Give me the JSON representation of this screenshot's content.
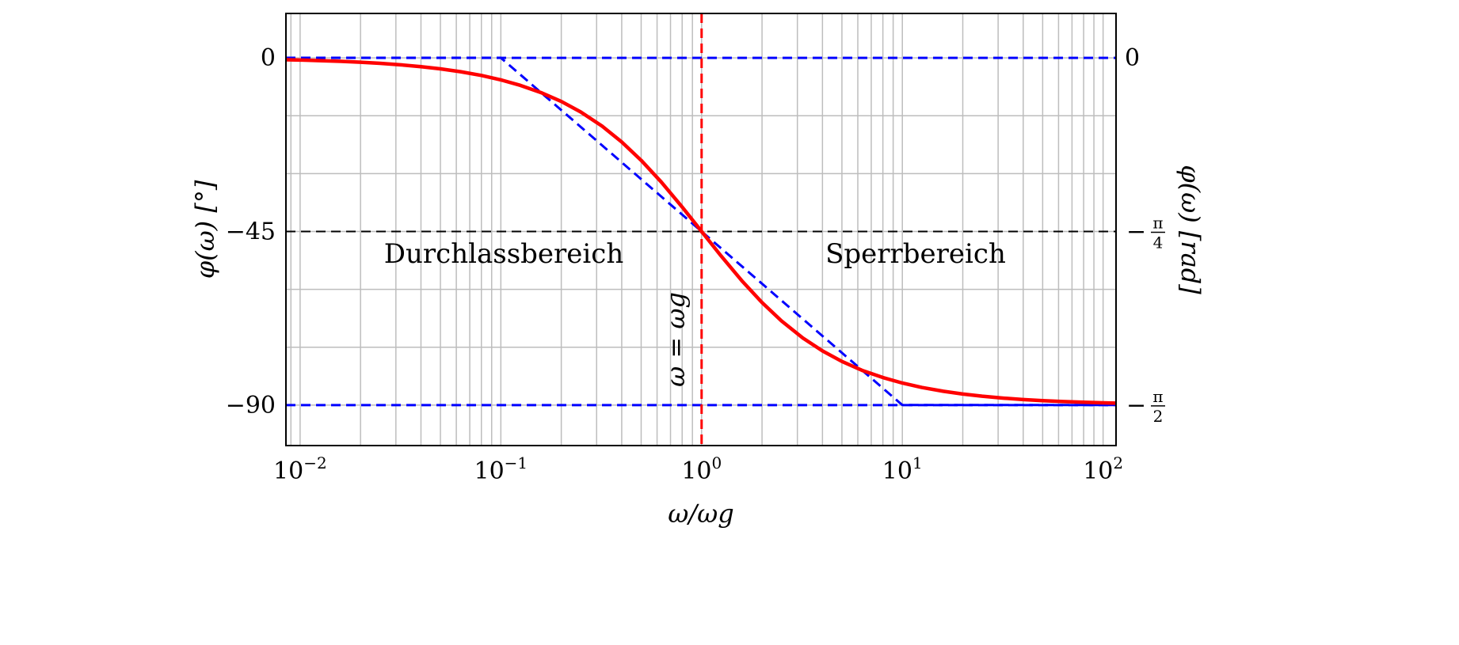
{
  "chart_data": {
    "type": "line",
    "x_scale": "log",
    "xlim": [
      0.0085,
      116
    ],
    "ylim": [
      -100.5,
      11.5
    ],
    "grid": true,
    "xlabel": "ω/ωg",
    "ylabel": "φ(ω) [°]",
    "ylabel_right": "φ(ω) [rad]",
    "x_ticks": [
      {
        "base": "10",
        "exp": "−2",
        "value": 0.01
      },
      {
        "base": "10",
        "exp": "−1",
        "value": 0.1
      },
      {
        "base": "10",
        "exp": "0",
        "value": 1
      },
      {
        "base": "10",
        "exp": "1",
        "value": 10
      },
      {
        "base": "10",
        "exp": "2",
        "value": 100
      }
    ],
    "y_ticks_left": [
      {
        "label": "0",
        "value": 0
      },
      {
        "label": "−45",
        "value": -45
      },
      {
        "label": "−90",
        "value": -90
      }
    ],
    "y_ticks_right": [
      {
        "label": "0",
        "value": 0
      },
      {
        "prefix": "−",
        "num": "π",
        "den": "4",
        "value": -45
      },
      {
        "prefix": "−",
        "num": "π",
        "den": "2",
        "value": -90
      }
    ],
    "series": [
      {
        "color": "#ff0000",
        "style": "solid",
        "x": [
          0.0085,
          0.01,
          0.0125,
          0.016,
          0.02,
          0.025,
          0.032,
          0.04,
          0.05,
          0.063,
          0.08,
          0.1,
          0.125,
          0.16,
          0.2,
          0.25,
          0.32,
          0.4,
          0.5,
          0.63,
          0.8,
          1,
          1.25,
          1.6,
          2,
          2.5,
          3.2,
          4,
          5,
          6.3,
          8,
          10,
          12.5,
          16,
          20,
          25,
          32,
          40,
          50,
          63,
          80,
          100,
          116
        ],
        "y": [
          -0.49,
          -0.57,
          -0.72,
          -0.92,
          -1.15,
          -1.43,
          -1.83,
          -2.29,
          -2.86,
          -3.6,
          -4.57,
          -5.71,
          -7.13,
          -9.09,
          -11.31,
          -14.04,
          -17.74,
          -21.8,
          -26.57,
          -32.2,
          -38.66,
          -45,
          -51.34,
          -57.99,
          -63.43,
          -68.2,
          -72.65,
          -75.96,
          -78.69,
          -81.0,
          -82.87,
          -84.29,
          -85.43,
          -86.42,
          -87.14,
          -87.71,
          -88.21,
          -88.57,
          -88.85,
          -89.09,
          -89.28,
          -89.43,
          -89.51
        ]
      },
      {
        "color": "#0000ff",
        "style": "dashed",
        "x": [
          0.0085,
          0.1,
          10,
          116
        ],
        "y": [
          0,
          0,
          -90,
          -90
        ]
      }
    ],
    "reference_lines": [
      {
        "orientation": "horizontal",
        "value": 0,
        "color": "#0000ff"
      },
      {
        "orientation": "horizontal",
        "value": -90,
        "color": "#0000ff"
      },
      {
        "orientation": "horizontal",
        "value": -45,
        "color": "#000000"
      },
      {
        "orientation": "vertical",
        "value": 1,
        "color": "#ff0000",
        "label": "ω = ωg"
      }
    ],
    "annotations": [
      {
        "text": "Durchlassbereich",
        "x": 0.1,
        "y": -50
      },
      {
        "text": "Sperrbereich",
        "x": 10,
        "y": -50
      }
    ]
  }
}
